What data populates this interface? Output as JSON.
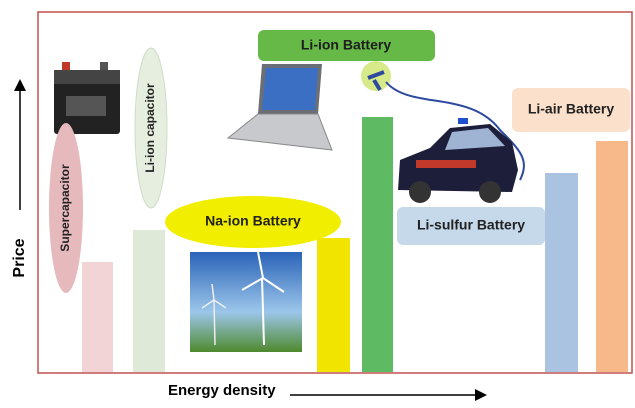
{
  "axes": {
    "y_label": "Price",
    "x_label": "Energy density"
  },
  "items": [
    {
      "label": "Supercapacitor"
    },
    {
      "label": "Li-ion capacitor"
    },
    {
      "label": "Na-ion Battery"
    },
    {
      "label": "Li-ion Battery"
    },
    {
      "label": "Li-sulfur Battery"
    },
    {
      "label": "Li-air Battery"
    }
  ]
}
